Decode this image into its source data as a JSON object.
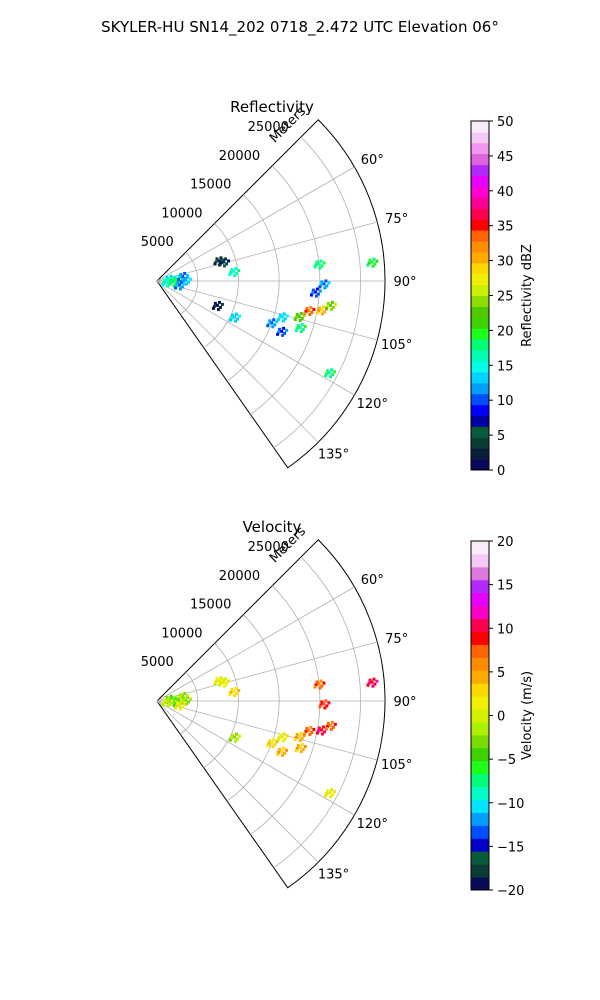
{
  "figure": {
    "suptitle": "SKYLER-HU  SN14_202  0718_2.472 UTC Elevation 06°"
  },
  "chart_data": [
    {
      "type": "heatmap",
      "subtype": "polar-sector",
      "title": "Reflectivity",
      "radial_label": "Meters",
      "radial_ticks": [
        "5000",
        "10000",
        "15000",
        "20000",
        "25000"
      ],
      "radial_tick_values": [
        5000,
        10000,
        15000,
        20000,
        25000
      ],
      "r_max": 28000,
      "angle_ticks": [
        "60°",
        "75°",
        "90°",
        "105°",
        "120°",
        "135°"
      ],
      "angle_tick_values": [
        60,
        75,
        90,
        105,
        120,
        135
      ],
      "theta_range": [
        45,
        145
      ],
      "grid": true,
      "colorbar": {
        "label": "Reflectivity dBZ",
        "range": [
          0,
          50
        ],
        "ticks": [
          "0",
          "5",
          "10",
          "15",
          "20",
          "25",
          "30",
          "35",
          "40",
          "45",
          "50"
        ],
        "tick_values": [
          0,
          5,
          10,
          15,
          20,
          25,
          30,
          35,
          40,
          45,
          50
        ],
        "colors": [
          "#0a0a5a",
          "#0a1e3c",
          "#0a3c32",
          "#0a5a3c",
          "#0000a0",
          "#0000ff",
          "#0050ff",
          "#00a0ff",
          "#00d2ff",
          "#00ffe6",
          "#00ffb4",
          "#00ff78",
          "#1eff1e",
          "#3cd200",
          "#50c800",
          "#8cdc00",
          "#c8f000",
          "#f0f000",
          "#ffd700",
          "#ffaa00",
          "#ff8c00",
          "#ff6400",
          "#ff0000",
          "#ff0050",
          "#ff0096",
          "#ff00d2",
          "#e600ff",
          "#b428ff",
          "#dc64dc",
          "#f096f0",
          "#f5c8f5",
          "#faebfa"
        ],
        "stops": [
          0,
          0.05,
          0.1,
          0.15,
          0.2,
          0.25,
          0.3,
          0.35,
          0.4,
          0.45,
          0.5,
          0.55,
          0.6,
          0.65,
          0.7,
          0.75,
          0.8,
          0.85,
          0.9,
          0.95,
          1.0
        ]
      },
      "echoes": [
        {
          "range_m": 1500,
          "azimuth_deg": 82,
          "value": 14
        },
        {
          "range_m": 2500,
          "azimuth_deg": 85,
          "value": 18
        },
        {
          "range_m": 2000,
          "azimuth_deg": 92,
          "value": 20
        },
        {
          "range_m": 3500,
          "azimuth_deg": 88,
          "value": 13
        },
        {
          "range_m": 1200,
          "azimuth_deg": 96,
          "value": 16
        },
        {
          "range_m": 2800,
          "azimuth_deg": 100,
          "value": 12
        },
        {
          "range_m": 3200,
          "azimuth_deg": 80,
          "value": 11
        },
        {
          "range_m": 8000,
          "azimuth_deg": 72,
          "value": 4
        },
        {
          "range_m": 8500,
          "azimuth_deg": 74,
          "value": 6
        },
        {
          "range_m": 9500,
          "azimuth_deg": 83,
          "value": 16
        },
        {
          "range_m": 8000,
          "azimuth_deg": 112,
          "value": 3
        },
        {
          "range_m": 10500,
          "azimuth_deg": 115,
          "value": 14
        },
        {
          "range_m": 15000,
          "azimuth_deg": 110,
          "value": 12
        },
        {
          "range_m": 16500,
          "azimuth_deg": 112,
          "value": 10
        },
        {
          "range_m": 18000,
          "azimuth_deg": 104,
          "value": 22
        },
        {
          "range_m": 19000,
          "azimuth_deg": 101,
          "value": 33
        },
        {
          "range_m": 20500,
          "azimuth_deg": 100,
          "value": 30
        },
        {
          "range_m": 21500,
          "azimuth_deg": 98,
          "value": 24
        },
        {
          "range_m": 16000,
          "azimuth_deg": 106,
          "value": 14
        },
        {
          "range_m": 18500,
          "azimuth_deg": 108,
          "value": 18
        },
        {
          "range_m": 20500,
          "azimuth_deg": 91,
          "value": 12
        },
        {
          "range_m": 20000,
          "azimuth_deg": 84,
          "value": 18
        },
        {
          "range_m": 26500,
          "azimuth_deg": 85,
          "value": 20
        },
        {
          "range_m": 24000,
          "azimuth_deg": 118,
          "value": 18
        },
        {
          "range_m": 19500,
          "azimuth_deg": 94,
          "value": 10
        }
      ]
    },
    {
      "type": "heatmap",
      "subtype": "polar-sector",
      "title": "Velocity",
      "radial_label": "Meters",
      "radial_ticks": [
        "5000",
        "10000",
        "15000",
        "20000",
        "25000"
      ],
      "radial_tick_values": [
        5000,
        10000,
        15000,
        20000,
        25000
      ],
      "r_max": 28000,
      "angle_ticks": [
        "60°",
        "75°",
        "90°",
        "105°",
        "120°",
        "135°"
      ],
      "angle_tick_values": [
        60,
        75,
        90,
        105,
        120,
        135
      ],
      "theta_range": [
        45,
        145
      ],
      "grid": true,
      "colorbar": {
        "label": "Velocity (m/s)",
        "range": [
          -20,
          20
        ],
        "ticks": [
          "−20",
          "−15",
          "−10",
          "−5",
          "0",
          "5",
          "10",
          "15",
          "20"
        ],
        "tick_values": [
          -20,
          -15,
          -10,
          -5,
          0,
          5,
          10,
          15,
          20
        ],
        "colors": [
          "#0a0a5a",
          "#0a3c32",
          "#0a5a3c",
          "#0000c8",
          "#0050ff",
          "#00a0ff",
          "#00e6ff",
          "#00ffc8",
          "#00ff78",
          "#1eff1e",
          "#3cd200",
          "#78dc00",
          "#aaf000",
          "#d2f000",
          "#f0f000",
          "#ffd700",
          "#ffaa00",
          "#ff8c00",
          "#ff6400",
          "#ff0000",
          "#ff0050",
          "#ff00c8",
          "#e600ff",
          "#b428ff",
          "#dc78dc",
          "#f5c8f5",
          "#faebfa"
        ],
        "stops": [
          0,
          0.05,
          0.1,
          0.15,
          0.2,
          0.25,
          0.3,
          0.35,
          0.4,
          0.45,
          0.5,
          0.55,
          0.6,
          0.65,
          0.7,
          0.75,
          0.8,
          0.85,
          0.9,
          0.95,
          1.0
        ]
      },
      "echoes": [
        {
          "range_m": 1500,
          "azimuth_deg": 82,
          "value": -3
        },
        {
          "range_m": 2500,
          "azimuth_deg": 85,
          "value": -2
        },
        {
          "range_m": 2000,
          "azimuth_deg": 92,
          "value": -4
        },
        {
          "range_m": 3500,
          "azimuth_deg": 88,
          "value": -3
        },
        {
          "range_m": 1200,
          "azimuth_deg": 96,
          "value": 0
        },
        {
          "range_m": 2800,
          "azimuth_deg": 100,
          "value": 1
        },
        {
          "range_m": 3200,
          "azimuth_deg": 80,
          "value": -2
        },
        {
          "range_m": 8000,
          "azimuth_deg": 72,
          "value": 2
        },
        {
          "range_m": 8500,
          "azimuth_deg": 74,
          "value": 1
        },
        {
          "range_m": 9500,
          "azimuth_deg": 83,
          "value": 3
        },
        {
          "range_m": 10500,
          "azimuth_deg": 115,
          "value": -1
        },
        {
          "range_m": 15000,
          "azimuth_deg": 110,
          "value": 3
        },
        {
          "range_m": 16500,
          "azimuth_deg": 112,
          "value": 5
        },
        {
          "range_m": 18000,
          "azimuth_deg": 104,
          "value": 5
        },
        {
          "range_m": 19000,
          "azimuth_deg": 101,
          "value": 8
        },
        {
          "range_m": 20500,
          "azimuth_deg": 100,
          "value": 10
        },
        {
          "range_m": 21500,
          "azimuth_deg": 98,
          "value": 7
        },
        {
          "range_m": 16000,
          "azimuth_deg": 106,
          "value": 2
        },
        {
          "range_m": 18500,
          "azimuth_deg": 108,
          "value": 4
        },
        {
          "range_m": 20500,
          "azimuth_deg": 91,
          "value": 9
        },
        {
          "range_m": 20000,
          "azimuth_deg": 84,
          "value": 7
        },
        {
          "range_m": 26500,
          "azimuth_deg": 85,
          "value": 11
        },
        {
          "range_m": 24000,
          "azimuth_deg": 118,
          "value": 2
        }
      ]
    }
  ]
}
